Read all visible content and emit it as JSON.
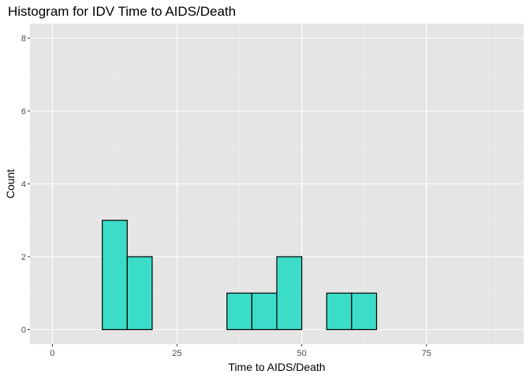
{
  "chart_data": {
    "type": "histogram",
    "title": "Histogram for IDV Time to AIDS/Death",
    "xlabel": "Time to AIDS/Death",
    "ylabel": "Count",
    "bin_width": 5,
    "bins": [
      {
        "start": 10,
        "end": 15,
        "count": 3
      },
      {
        "start": 15,
        "end": 20,
        "count": 2
      },
      {
        "start": 20,
        "end": 25,
        "count": 0
      },
      {
        "start": 25,
        "end": 30,
        "count": 0
      },
      {
        "start": 30,
        "end": 35,
        "count": 0
      },
      {
        "start": 35,
        "end": 40,
        "count": 1
      },
      {
        "start": 40,
        "end": 45,
        "count": 1
      },
      {
        "start": 45,
        "end": 50,
        "count": 2
      },
      {
        "start": 50,
        "end": 55,
        "count": 0
      },
      {
        "start": 55,
        "end": 60,
        "count": 1
      },
      {
        "start": 60,
        "end": 65,
        "count": 1
      },
      {
        "start": 65,
        "end": 70,
        "count": 0
      },
      {
        "start": 70,
        "end": 75,
        "count": 0
      },
      {
        "start": 75,
        "end": 80,
        "count": 0
      }
    ],
    "xlim": [
      -4.5,
      94.5
    ],
    "ylim": [
      -0.4,
      8.4
    ],
    "x_ticks": [
      0,
      25,
      50,
      75
    ],
    "x_tick_labels": [
      "0",
      "25",
      "50",
      "75"
    ],
    "y_ticks": [
      0,
      2,
      4,
      6,
      8
    ],
    "y_tick_labels": [
      "0",
      "2",
      "4",
      "6",
      "8"
    ],
    "grid": true,
    "fill_color": "#3BDDC9",
    "edge_color": "#000000",
    "panel_color": "#E5E5E5"
  }
}
